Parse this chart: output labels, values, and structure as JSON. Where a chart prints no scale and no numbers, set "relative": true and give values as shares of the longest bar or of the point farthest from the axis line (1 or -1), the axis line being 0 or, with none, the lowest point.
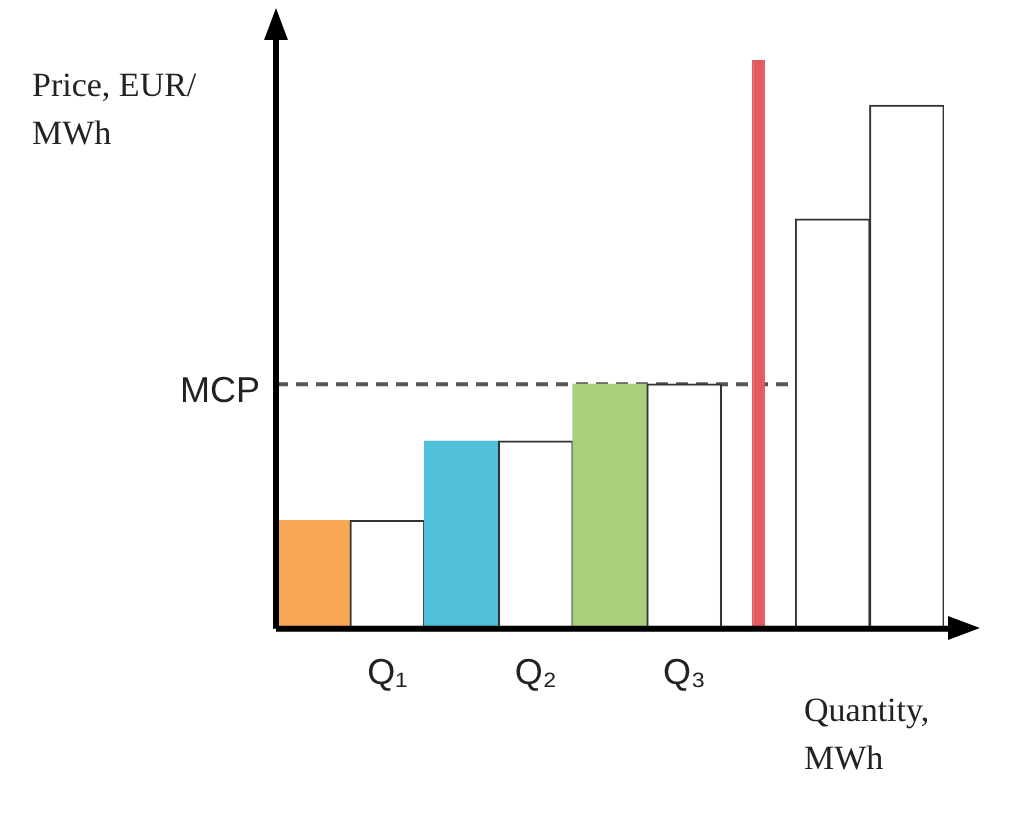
{
  "chart_data": {
    "type": "bar",
    "relative": true,
    "ylabel": "Price, EUR/ MWh",
    "xlabel": "Quantity, MWh",
    "categories": [
      null,
      "Q₁",
      null,
      "Q₂",
      null,
      "Q₃",
      null,
      null,
      null
    ],
    "series": [
      {
        "colors": [
          "#f9a857",
          "#ffffff",
          "#4fc0d8",
          "#ffffff",
          "#a8d07a",
          "#ffffff",
          null,
          "#ffffff",
          "#ffffff"
        ],
        "values": [
          0.19,
          0.19,
          0.33,
          0.33,
          0.43,
          0.43,
          null,
          0.72,
          0.92
        ]
      },
      {
        "color": "#e05a5f",
        "values": [
          null,
          null,
          null,
          null,
          null,
          null,
          1,
          null,
          null
        ]
      }
    ],
    "ref_lines": [
      {
        "axis": "y",
        "value": 0.43,
        "label": "MCP",
        "line_style": "dashed",
        "color": "#555555"
      }
    ],
    "legend": false,
    "grid": false
  }
}
